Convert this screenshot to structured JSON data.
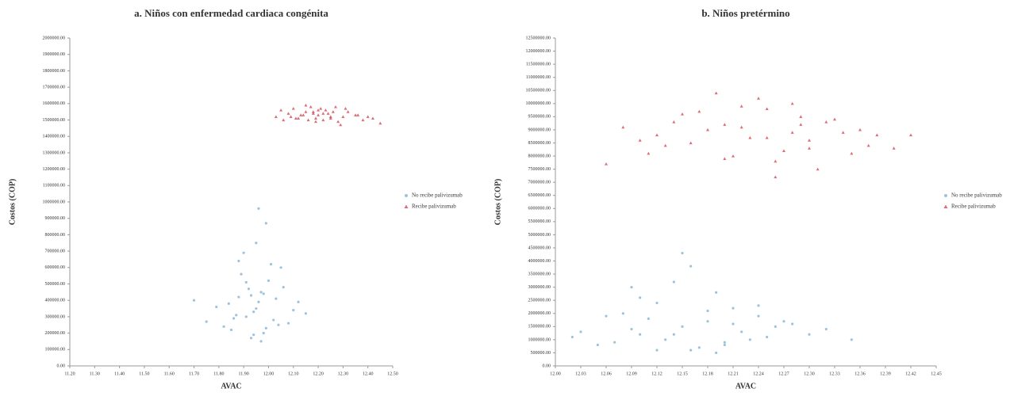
{
  "chart_data": [
    {
      "type": "scatter",
      "title": "a. Niños con enfermedad cardiaca congénita",
      "x_label": "AVAC",
      "y_label": "Costos (COP)",
      "legend": "right",
      "grid": false,
      "xlim": [
        11.2,
        12.5
      ],
      "ylim": [
        0,
        2000000
      ],
      "xticks": [
        {
          "value": 11.2,
          "label": "11.20"
        },
        {
          "value": 11.3,
          "label": "11.30"
        },
        {
          "value": 11.4,
          "label": "11.40"
        },
        {
          "value": 11.5,
          "label": "11.50"
        },
        {
          "value": 11.6,
          "label": "11.60"
        },
        {
          "value": 11.7,
          "label": "11.70"
        },
        {
          "value": 11.8,
          "label": "11.80"
        },
        {
          "value": 11.9,
          "label": "11.90"
        },
        {
          "value": 12.0,
          "label": "12.00"
        },
        {
          "value": 12.1,
          "label": "12.10"
        },
        {
          "value": 12.2,
          "label": "12.20"
        },
        {
          "value": 12.3,
          "label": "12.30"
        },
        {
          "value": 12.4,
          "label": "12.40"
        },
        {
          "value": 12.5,
          "label": "12.50"
        }
      ],
      "yticks": [
        {
          "value": 0,
          "label": "0.00"
        },
        {
          "value": 100000,
          "label": "100000.00"
        },
        {
          "value": 200000,
          "label": "200000.00"
        },
        {
          "value": 300000,
          "label": "300000.00"
        },
        {
          "value": 400000,
          "label": "400000.00"
        },
        {
          "value": 500000,
          "label": "500000.00"
        },
        {
          "value": 600000,
          "label": "600000.00"
        },
        {
          "value": 700000,
          "label": "700000.00"
        },
        {
          "value": 800000,
          "label": "800000.00"
        },
        {
          "value": 900000,
          "label": "900000.00"
        },
        {
          "value": 1000000,
          "label": "1000000.00"
        },
        {
          "value": 1100000,
          "label": "1100000.00"
        },
        {
          "value": 1200000,
          "label": "1200000.00"
        },
        {
          "value": 1300000,
          "label": "1300000.00"
        },
        {
          "value": 1400000,
          "label": "1400000.00"
        },
        {
          "value": 1500000,
          "label": "1500000.00"
        },
        {
          "value": 1600000,
          "label": "1600000.00"
        },
        {
          "value": 1700000,
          "label": "1700000.00"
        },
        {
          "value": 1800000,
          "label": "1800000.00"
        },
        {
          "value": 1900000,
          "label": "1900000.00"
        },
        {
          "value": 2000000,
          "label": "2000000.00"
        }
      ],
      "series": [
        {
          "name": "No recibe palivizumab",
          "color": "#5b9bc4",
          "marker": "circle",
          "x": [
            11.95,
            11.88,
            12.02,
            11.91,
            11.99,
            11.84,
            12.05,
            11.93,
            11.97,
            11.87,
            12.08,
            11.9,
            11.96,
            12.0,
            11.82,
            11.94,
            12.03,
            11.89,
            11.98,
            11.92,
            12.1,
            11.86,
            11.95,
            12.01,
            11.79,
            11.97,
            11.93,
            12.06,
            11.85,
            11.99,
            11.91,
            12.12,
            11.75,
            11.96,
            12.04,
            11.88,
            11.94,
            11.7,
            12.15,
            11.98
          ],
          "y": [
            350000,
            420000,
            280000,
            510000,
            230000,
            380000,
            600000,
            170000,
            450000,
            310000,
            260000,
            690000,
            390000,
            520000,
            240000,
            330000,
            410000,
            560000,
            200000,
            470000,
            340000,
            290000,
            750000,
            620000,
            360000,
            150000,
            430000,
            480000,
            220000,
            870000,
            300000,
            390000,
            270000,
            960000,
            250000,
            640000,
            190000,
            400000,
            320000,
            440000
          ]
        },
        {
          "name": "Recibe palivizumab",
          "color": "#d23c4a",
          "marker": "triangle",
          "x": [
            12.2,
            12.15,
            12.25,
            12.1,
            12.3,
            12.18,
            12.22,
            12.05,
            12.35,
            12.12,
            12.27,
            12.19,
            12.08,
            12.4,
            12.23,
            12.16,
            12.32,
            12.14,
            12.21,
            12.03,
            12.28,
            12.17,
            12.24,
            12.11,
            12.38,
            12.2,
            12.13,
            12.26,
            12.45,
            12.09,
            12.31,
            12.19,
            12.22,
            12.15,
            12.36,
            12.06,
            12.25,
            12.18,
            12.29,
            12.42
          ],
          "y": [
            1530000,
            1550000,
            1510000,
            1570000,
            1520000,
            1540000,
            1500000,
            1560000,
            1530000,
            1510000,
            1580000,
            1490000,
            1540000,
            1520000,
            1560000,
            1500000,
            1550000,
            1530000,
            1570000,
            1520000,
            1490000,
            1580000,
            1540000,
            1510000,
            1500000,
            1560000,
            1530000,
            1550000,
            1480000,
            1520000,
            1570000,
            1510000,
            1540000,
            1590000,
            1530000,
            1500000,
            1520000,
            1550000,
            1470000,
            1510000
          ]
        }
      ]
    },
    {
      "type": "scatter",
      "title": "b. Niños pretérmino",
      "x_label": "AVAC",
      "y_label": "Costos (COP)",
      "legend": "right",
      "grid": false,
      "xlim": [
        12.0,
        12.45
      ],
      "ylim": [
        0,
        12500000
      ],
      "xticks": [
        {
          "value": 12.0,
          "label": "12.00"
        },
        {
          "value": 12.03,
          "label": "12.03"
        },
        {
          "value": 12.06,
          "label": "12.06"
        },
        {
          "value": 12.09,
          "label": "12.09"
        },
        {
          "value": 12.12,
          "label": "12.12"
        },
        {
          "value": 12.15,
          "label": "12.15"
        },
        {
          "value": 12.18,
          "label": "12.18"
        },
        {
          "value": 12.21,
          "label": "12.21"
        },
        {
          "value": 12.24,
          "label": "12.24"
        },
        {
          "value": 12.27,
          "label": "12.27"
        },
        {
          "value": 12.3,
          "label": "12.30"
        },
        {
          "value": 12.33,
          "label": "12.33"
        },
        {
          "value": 12.36,
          "label": "12.36"
        },
        {
          "value": 12.39,
          "label": "12.39"
        },
        {
          "value": 12.42,
          "label": "12.42"
        },
        {
          "value": 12.45,
          "label": "12.45"
        }
      ],
      "yticks": [
        {
          "value": 0,
          "label": "0.00"
        },
        {
          "value": 500000,
          "label": "500000.00"
        },
        {
          "value": 1000000,
          "label": "1000000.00"
        },
        {
          "value": 1500000,
          "label": "1500000.00"
        },
        {
          "value": 2000000,
          "label": "2000000.00"
        },
        {
          "value": 2500000,
          "label": "2500000.00"
        },
        {
          "value": 3000000,
          "label": "3000000.00"
        },
        {
          "value": 3500000,
          "label": "3500000.00"
        },
        {
          "value": 4000000,
          "label": "4000000.00"
        },
        {
          "value": 4500000,
          "label": "4500000.00"
        },
        {
          "value": 5000000,
          "label": "5000000.00"
        },
        {
          "value": 5500000,
          "label": "5500000.00"
        },
        {
          "value": 6000000,
          "label": "6000000.00"
        },
        {
          "value": 6500000,
          "label": "6500000.00"
        },
        {
          "value": 7000000,
          "label": "7000000.00"
        },
        {
          "value": 7500000,
          "label": "7500000.00"
        },
        {
          "value": 8000000,
          "label": "8000000.00"
        },
        {
          "value": 8500000,
          "label": "8500000.00"
        },
        {
          "value": 9000000,
          "label": "9000000.00"
        },
        {
          "value": 9500000,
          "label": "9500000.00"
        },
        {
          "value": 10000000,
          "label": "10000000.00"
        },
        {
          "value": 10500000,
          "label": "10500000.00"
        },
        {
          "value": 11000000,
          "label": "11000000.00"
        },
        {
          "value": 11500000,
          "label": "11500000.00"
        },
        {
          "value": 12000000,
          "label": "12000000.00"
        },
        {
          "value": 12500000,
          "label": "12500000.00"
        }
      ],
      "series": [
        {
          "name": "No recibe palivizumab",
          "color": "#5b9bc4",
          "marker": "circle",
          "x": [
            12.15,
            12.1,
            12.2,
            12.08,
            12.18,
            12.25,
            12.12,
            12.05,
            12.22,
            12.16,
            12.28,
            12.09,
            12.19,
            12.13,
            12.24,
            12.03,
            12.17,
            12.21,
            12.11,
            12.3,
            12.14,
            12.07,
            12.26,
            12.19,
            12.1,
            12.23,
            12.16,
            12.32,
            12.02,
            12.18,
            12.12,
            12.27,
            12.15,
            12.2,
            12.06,
            12.24,
            12.14,
            12.35,
            12.09,
            12.21
          ],
          "y": [
            1500000,
            1200000,
            900000,
            2000000,
            1700000,
            1100000,
            2400000,
            800000,
            1300000,
            600000,
            1600000,
            1400000,
            2800000,
            1000000,
            1900000,
            1300000,
            700000,
            2200000,
            1800000,
            1200000,
            3200000,
            900000,
            1500000,
            500000,
            2600000,
            1000000,
            3800000,
            1400000,
            1100000,
            2100000,
            600000,
            1700000,
            4300000,
            800000,
            1900000,
            2300000,
            1200000,
            1000000,
            3000000,
            1600000
          ]
        },
        {
          "name": "Recibe palivizumab",
          "color": "#d23c4a",
          "marker": "triangle",
          "x": [
            12.25,
            12.2,
            12.3,
            12.15,
            12.28,
            12.35,
            12.22,
            12.1,
            12.32,
            12.26,
            12.18,
            12.38,
            12.24,
            12.13,
            12.29,
            12.21,
            12.34,
            12.17,
            12.27,
            12.08,
            12.31,
            12.23,
            12.19,
            12.36,
            12.12,
            12.26,
            12.33,
            12.16,
            12.28,
            12.4,
            12.22,
            12.06,
            12.3,
            12.25,
            12.14,
            12.37,
            12.2,
            12.29,
            12.11,
            12.42
          ],
          "y": [
            8700000,
            9200000,
            8300000,
            9600000,
            8900000,
            8100000,
            9900000,
            8600000,
            9300000,
            7800000,
            9000000,
            8800000,
            10200000,
            8400000,
            9500000,
            8000000,
            8900000,
            9700000,
            8200000,
            9100000,
            7500000,
            8700000,
            10400000,
            9000000,
            8800000,
            7200000,
            9400000,
            8500000,
            10000000,
            8300000,
            9100000,
            7700000,
            8600000,
            9800000,
            9300000,
            8400000,
            7900000,
            9200000,
            8100000,
            8800000
          ]
        }
      ]
    }
  ]
}
